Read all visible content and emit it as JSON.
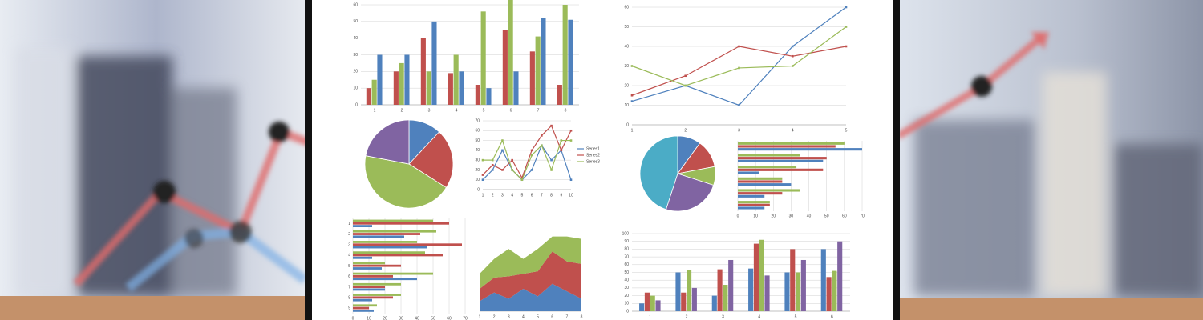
{
  "chart_data": [
    {
      "type": "bar",
      "categories": [
        1,
        2,
        3,
        4,
        5,
        6,
        7,
        8
      ],
      "ylim": [
        0,
        60
      ],
      "yticks": [
        0,
        10,
        20,
        30,
        40,
        50,
        60
      ],
      "grid": true,
      "series": [
        {
          "color": "#c0504d",
          "values": [
            10,
            20,
            40,
            19,
            12,
            45,
            32,
            12
          ]
        },
        {
          "color": "#9bbb59",
          "values": [
            15,
            25,
            20,
            30,
            56,
            63,
            41,
            60
          ]
        },
        {
          "color": "#4f81bd",
          "values": [
            30,
            30,
            50,
            20,
            10,
            20,
            52,
            51
          ]
        }
      ]
    },
    {
      "type": "line",
      "categories": [
        1,
        2,
        3,
        4,
        5
      ],
      "ylim": [
        0,
        60
      ],
      "yticks": [
        0,
        10,
        20,
        30,
        40,
        50,
        60
      ],
      "grid": true,
      "series": [
        {
          "color": "#4f81bd",
          "values": [
            12,
            20,
            10,
            40,
            60
          ]
        },
        {
          "color": "#c0504d",
          "values": [
            15,
            25,
            40,
            35,
            40
          ]
        },
        {
          "color": "#9bbb59",
          "values": [
            30,
            20,
            29,
            30,
            50
          ]
        }
      ]
    },
    {
      "type": "pie",
      "values": [
        12,
        22,
        44,
        22
      ],
      "colors": [
        "#4f81bd",
        "#c0504d",
        "#9bbb59",
        "#8064a2"
      ]
    },
    {
      "type": "line",
      "categories": [
        1,
        2,
        3,
        4,
        5,
        6,
        7,
        8,
        9,
        10
      ],
      "ylim": [
        0,
        70
      ],
      "yticks": [
        0,
        10,
        20,
        30,
        40,
        50,
        60,
        70
      ],
      "grid": true,
      "legend": "right",
      "series": [
        {
          "name": "Series1",
          "color": "#4f81bd",
          "values": [
            10,
            20,
            40,
            20,
            10,
            20,
            45,
            30,
            40,
            10
          ]
        },
        {
          "name": "Series2",
          "color": "#c0504d",
          "values": [
            15,
            25,
            20,
            30,
            12,
            40,
            55,
            65,
            40,
            60
          ]
        },
        {
          "name": "Series3",
          "color": "#9bbb59",
          "values": [
            30,
            30,
            50,
            20,
            10,
            35,
            45,
            20,
            50,
            50
          ]
        }
      ]
    },
    {
      "type": "pie",
      "values": [
        10,
        12,
        8,
        25,
        45
      ],
      "colors": [
        "#4f81bd",
        "#c0504d",
        "#9bbb59",
        "#8064a2",
        "#4bacc6"
      ]
    },
    {
      "type": "hbar",
      "xlim": [
        0,
        70
      ],
      "xticks": [
        0,
        10,
        20,
        30,
        40,
        50,
        60,
        70
      ],
      "grid": true,
      "series": [
        {
          "color": "#9bbb59",
          "values": [
            60,
            35,
            33,
            25,
            35,
            18
          ]
        },
        {
          "color": "#c0504d",
          "values": [
            55,
            50,
            48,
            25,
            25,
            18
          ]
        },
        {
          "color": "#4f81bd",
          "values": [
            70,
            48,
            12,
            30,
            15,
            15
          ]
        }
      ]
    },
    {
      "type": "hbar",
      "categories": [
        1,
        2,
        3,
        4,
        5,
        6,
        7,
        8,
        9
      ],
      "xlim": [
        0,
        70
      ],
      "xticks": [
        0,
        10,
        20,
        30,
        40,
        50,
        60,
        70
      ],
      "grid": true,
      "series": [
        {
          "color": "#9bbb59",
          "values": [
            50,
            52,
            40,
            45,
            20,
            50,
            30,
            30,
            15
          ]
        },
        {
          "color": "#c0504d",
          "values": [
            60,
            42,
            68,
            56,
            30,
            25,
            20,
            25,
            10
          ]
        },
        {
          "color": "#4f81bd",
          "values": [
            12,
            32,
            46,
            12,
            18,
            40,
            20,
            12,
            13
          ]
        }
      ]
    },
    {
      "type": "area",
      "categories": [
        1,
        2,
        3,
        4,
        5,
        6,
        7,
        8
      ],
      "ylim": [
        0,
        70
      ],
      "series": [
        {
          "color": "#4f81bd",
          "values": [
            8,
            15,
            10,
            18,
            12,
            22,
            16,
            10
          ]
        },
        {
          "color": "#c0504d",
          "values": [
            10,
            12,
            18,
            12,
            20,
            26,
            24,
            28
          ]
        },
        {
          "color": "#9bbb59",
          "values": [
            12,
            15,
            22,
            12,
            18,
            12,
            20,
            20
          ]
        }
      ]
    },
    {
      "type": "bar",
      "categories": [
        1,
        2,
        3,
        4,
        5,
        6
      ],
      "ylim": [
        0,
        100
      ],
      "yticks": [
        0,
        10,
        20,
        30,
        40,
        50,
        60,
        70,
        80,
        90,
        100
      ],
      "grid": true,
      "series": [
        {
          "color": "#4f81bd",
          "values": [
            10,
            50,
            20,
            55,
            50,
            80
          ]
        },
        {
          "color": "#c0504d",
          "values": [
            24,
            24,
            54,
            87,
            80,
            44
          ]
        },
        {
          "color": "#9bbb59",
          "values": [
            20,
            53,
            34,
            92,
            50,
            52
          ]
        },
        {
          "color": "#8064a2",
          "values": [
            14,
            30,
            66,
            46,
            66,
            90
          ]
        }
      ]
    }
  ]
}
